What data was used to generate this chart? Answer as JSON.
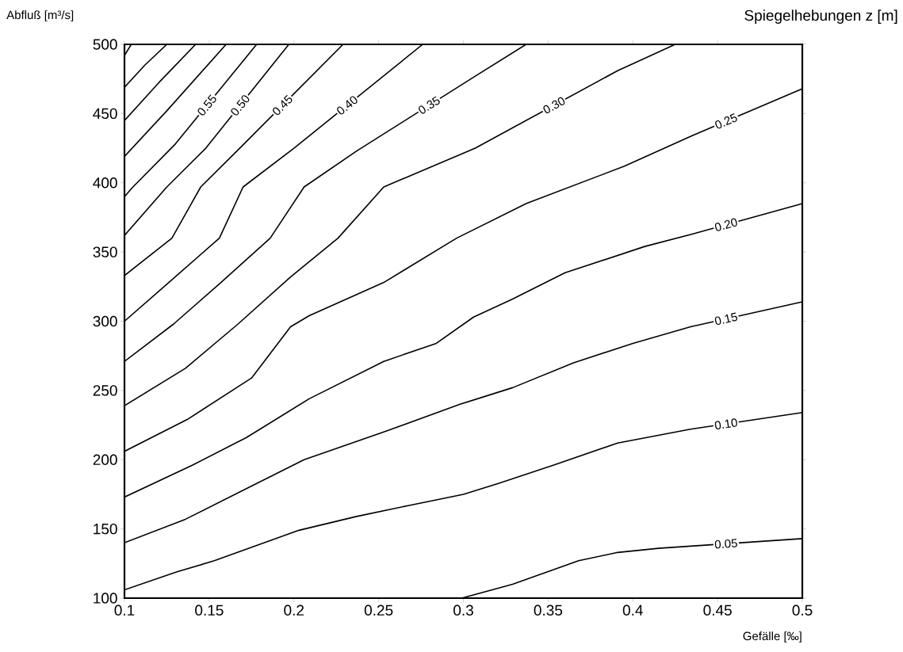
{
  "chart_data": {
    "type": "line",
    "title": "Spiegelhebungen z [m]",
    "xlabel": "Gefälle [‰]",
    "ylabel": "Abfluß [m³/s]",
    "xlim": [
      0.1,
      0.5
    ],
    "xticks": [
      0.1,
      0.15,
      0.2,
      0.25,
      0.3,
      0.35,
      0.4,
      0.45,
      0.5
    ],
    "ylim": [
      100,
      500
    ],
    "yticks": [
      100,
      150,
      200,
      250,
      300,
      350,
      400,
      450,
      500
    ],
    "series": [
      {
        "name": "0.05",
        "color": "#000000",
        "x": [
          0.299,
          0.329,
          0.368,
          0.391,
          0.415,
          0.5
        ],
        "values": [
          100,
          110,
          127,
          133,
          136,
          143
        ]
      },
      {
        "name": "0.10",
        "color": "#000000",
        "x": [
          0.1,
          0.131,
          0.153,
          0.203,
          0.237,
          0.268,
          0.3,
          0.321,
          0.353,
          0.391,
          0.434,
          0.5
        ],
        "values": [
          106,
          119,
          127,
          149,
          159,
          167,
          175,
          183,
          196,
          212,
          222,
          234
        ]
      },
      {
        "name": "0.15",
        "color": "#000000",
        "x": [
          0.1,
          0.136,
          0.175,
          0.206,
          0.253,
          0.298,
          0.329,
          0.365,
          0.4,
          0.434,
          0.5
        ],
        "values": [
          140,
          157,
          181,
          200,
          220,
          240,
          252,
          270,
          284,
          296,
          314
        ]
      },
      {
        "name": "0.20",
        "color": "#000000",
        "x": [
          0.1,
          0.14,
          0.172,
          0.209,
          0.253,
          0.284,
          0.306,
          0.329,
          0.36,
          0.407,
          0.435,
          0.5
        ],
        "values": [
          173,
          196,
          216,
          244,
          271,
          284,
          303,
          316,
          335,
          354,
          363,
          385
        ]
      },
      {
        "name": "0.25",
        "color": "#000000",
        "x": [
          0.1,
          0.137,
          0.175,
          0.198,
          0.209,
          0.253,
          0.296,
          0.337,
          0.395,
          0.435,
          0.5
        ],
        "values": [
          206,
          229,
          259,
          296,
          304,
          328,
          360,
          385,
          412,
          434,
          468
        ]
      },
      {
        "name": "0.30",
        "color": "#000000",
        "x": [
          0.1,
          0.136,
          0.167,
          0.198,
          0.226,
          0.253,
          0.307,
          0.391,
          0.425
        ],
        "values": [
          239,
          266,
          298,
          332,
          360,
          397,
          425,
          481,
          500
        ]
      },
      {
        "name": "0.35",
        "color": "#000000",
        "x": [
          0.1,
          0.129,
          0.156,
          0.186,
          0.206,
          0.237,
          0.307,
          0.337
        ],
        "values": [
          271,
          298,
          327,
          360,
          397,
          423,
          477,
          500
        ]
      },
      {
        "name": "0.40",
        "color": "#000000",
        "x": [
          0.1,
          0.128,
          0.156,
          0.17,
          0.2,
          0.276
        ],
        "values": [
          300,
          330,
          360,
          397,
          425,
          500
        ]
      },
      {
        "name": "0.45",
        "color": "#000000",
        "x": [
          0.1,
          0.128,
          0.145,
          0.168,
          0.229
        ],
        "values": [
          333,
          360,
          397,
          425,
          500
        ]
      },
      {
        "name": "0.50",
        "color": "#000000",
        "x": [
          0.1,
          0.125,
          0.148,
          0.197
        ],
        "values": [
          362,
          397,
          425,
          500
        ]
      },
      {
        "name": "0.55",
        "color": "#000000",
        "x": [
          0.1,
          0.105,
          0.13,
          0.178
        ],
        "values": [
          390,
          397,
          428,
          500
        ]
      },
      {
        "color": "#000000",
        "x": [
          0.1,
          0.125,
          0.16
        ],
        "values": [
          419,
          452,
          500
        ]
      },
      {
        "color": "#000000",
        "x": [
          0.1,
          0.12,
          0.142
        ],
        "values": [
          445,
          472,
          500
        ]
      },
      {
        "color": "#000000",
        "x": [
          0.1,
          0.112,
          0.125
        ],
        "values": [
          469,
          485,
          500
        ]
      },
      {
        "color": "#000000",
        "x": [
          0.1,
          0.104
        ],
        "values": [
          492,
          500
        ]
      }
    ]
  }
}
